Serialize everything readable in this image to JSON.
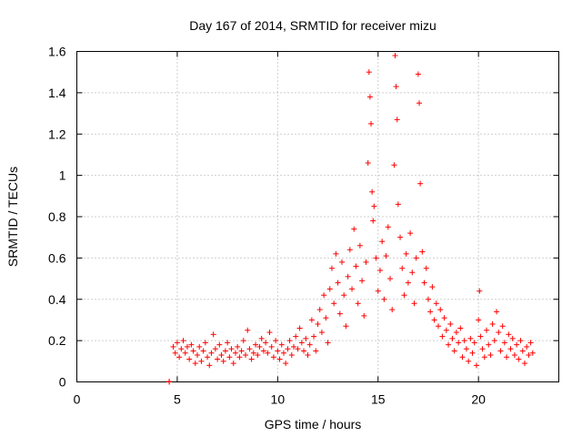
{
  "chart_data": {
    "type": "scatter",
    "title": "Day 167 of 2014, SRMTID for receiver mizu",
    "xlabel": "GPS time / hours",
    "ylabel": "SRMTID / TECUs",
    "xlim": [
      0,
      24
    ],
    "ylim": [
      0,
      1.6
    ],
    "xticks": [
      "0",
      "5",
      "10",
      "15",
      "20"
    ],
    "yticks": [
      "0",
      "0.2",
      "0.4",
      "0.6",
      "0.8",
      "1",
      "1.2",
      "1.4",
      "1.6"
    ],
    "grid": true,
    "marker": "+",
    "color": "#ff0000",
    "series": [
      {
        "name": "SRMTID",
        "points": [
          [
            4.6,
            0.0
          ],
          [
            4.6,
            0.002
          ],
          [
            4.8,
            0.17
          ],
          [
            4.9,
            0.14
          ],
          [
            5.0,
            0.19
          ],
          [
            5.1,
            0.12
          ],
          [
            5.2,
            0.16
          ],
          [
            5.3,
            0.2
          ],
          [
            5.4,
            0.14
          ],
          [
            5.5,
            0.17
          ],
          [
            5.6,
            0.11
          ],
          [
            5.7,
            0.18
          ],
          [
            5.8,
            0.15
          ],
          [
            5.9,
            0.09
          ],
          [
            6.0,
            0.13
          ],
          [
            6.1,
            0.17
          ],
          [
            6.2,
            0.1
          ],
          [
            6.3,
            0.15
          ],
          [
            6.4,
            0.19
          ],
          [
            6.5,
            0.12
          ],
          [
            6.6,
            0.08
          ],
          [
            6.7,
            0.14
          ],
          [
            6.8,
            0.23
          ],
          [
            6.9,
            0.16
          ],
          [
            7.0,
            0.11
          ],
          [
            7.1,
            0.18
          ],
          [
            7.2,
            0.13
          ],
          [
            7.3,
            0.1
          ],
          [
            7.4,
            0.15
          ],
          [
            7.5,
            0.19
          ],
          [
            7.6,
            0.12
          ],
          [
            7.7,
            0.16
          ],
          [
            7.8,
            0.09
          ],
          [
            7.9,
            0.14
          ],
          [
            8.0,
            0.17
          ],
          [
            8.1,
            0.12
          ],
          [
            8.2,
            0.15
          ],
          [
            8.3,
            0.2
          ],
          [
            8.4,
            0.13
          ],
          [
            8.5,
            0.25
          ],
          [
            8.6,
            0.16
          ],
          [
            8.7,
            0.11
          ],
          [
            8.8,
            0.14
          ],
          [
            8.9,
            0.18
          ],
          [
            9.0,
            0.13
          ],
          [
            9.1,
            0.17
          ],
          [
            9.2,
            0.21
          ],
          [
            9.3,
            0.15
          ],
          [
            9.4,
            0.19
          ],
          [
            9.5,
            0.14
          ],
          [
            9.6,
            0.24
          ],
          [
            9.7,
            0.17
          ],
          [
            9.8,
            0.12
          ],
          [
            9.9,
            0.2
          ],
          [
            10.0,
            0.15
          ],
          [
            10.1,
            0.11
          ],
          [
            10.2,
            0.18
          ],
          [
            10.3,
            0.14
          ],
          [
            10.4,
            0.09
          ],
          [
            10.5,
            0.16
          ],
          [
            10.6,
            0.2
          ],
          [
            10.7,
            0.13
          ],
          [
            10.8,
            0.17
          ],
          [
            10.9,
            0.22
          ],
          [
            11.0,
            0.16
          ],
          [
            11.1,
            0.26
          ],
          [
            11.2,
            0.19
          ],
          [
            11.3,
            0.15
          ],
          [
            11.4,
            0.21
          ],
          [
            11.5,
            0.13
          ],
          [
            11.6,
            0.18
          ],
          [
            11.7,
            0.3
          ],
          [
            11.8,
            0.22
          ],
          [
            11.9,
            0.15
          ],
          [
            12.0,
            0.28
          ],
          [
            12.1,
            0.35
          ],
          [
            12.2,
            0.24
          ],
          [
            12.3,
            0.42
          ],
          [
            12.4,
            0.31
          ],
          [
            12.5,
            0.19
          ],
          [
            12.6,
            0.45
          ],
          [
            12.7,
            0.55
          ],
          [
            12.8,
            0.38
          ],
          [
            12.9,
            0.62
          ],
          [
            13.0,
            0.48
          ],
          [
            13.1,
            0.33
          ],
          [
            13.2,
            0.58
          ],
          [
            13.3,
            0.42
          ],
          [
            13.4,
            0.27
          ],
          [
            13.5,
            0.51
          ],
          [
            13.6,
            0.64
          ],
          [
            13.7,
            0.45
          ],
          [
            13.8,
            0.74
          ],
          [
            13.9,
            0.56
          ],
          [
            14.0,
            0.38
          ],
          [
            14.1,
            0.66
          ],
          [
            14.2,
            0.49
          ],
          [
            14.3,
            0.32
          ],
          [
            14.4,
            0.58
          ],
          [
            14.5,
            1.06
          ],
          [
            14.55,
            1.5
          ],
          [
            14.6,
            1.38
          ],
          [
            14.65,
            1.25
          ],
          [
            14.7,
            0.92
          ],
          [
            14.75,
            0.78
          ],
          [
            14.8,
            0.85
          ],
          [
            14.9,
            0.6
          ],
          [
            15.0,
            0.44
          ],
          [
            15.1,
            0.54
          ],
          [
            15.2,
            0.68
          ],
          [
            15.3,
            0.4
          ],
          [
            15.4,
            0.61
          ],
          [
            15.5,
            0.75
          ],
          [
            15.6,
            0.5
          ],
          [
            15.7,
            0.35
          ],
          [
            15.8,
            1.05
          ],
          [
            15.85,
            1.58
          ],
          [
            15.9,
            1.43
          ],
          [
            15.95,
            1.27
          ],
          [
            16.0,
            0.86
          ],
          [
            16.1,
            0.7
          ],
          [
            16.2,
            0.55
          ],
          [
            16.3,
            0.42
          ],
          [
            16.4,
            0.62
          ],
          [
            16.5,
            0.48
          ],
          [
            16.6,
            0.72
          ],
          [
            16.7,
            0.53
          ],
          [
            16.8,
            0.38
          ],
          [
            16.9,
            0.6
          ],
          [
            17.0,
            1.49
          ],
          [
            17.05,
            1.35
          ],
          [
            17.1,
            0.96
          ],
          [
            17.2,
            0.63
          ],
          [
            17.3,
            0.48
          ],
          [
            17.4,
            0.55
          ],
          [
            17.5,
            0.4
          ],
          [
            17.6,
            0.34
          ],
          [
            17.7,
            0.46
          ],
          [
            17.8,
            0.3
          ],
          [
            17.9,
            0.38
          ],
          [
            18.0,
            0.27
          ],
          [
            18.1,
            0.35
          ],
          [
            18.2,
            0.22
          ],
          [
            18.3,
            0.31
          ],
          [
            18.4,
            0.25
          ],
          [
            18.5,
            0.18
          ],
          [
            18.6,
            0.28
          ],
          [
            18.7,
            0.21
          ],
          [
            18.8,
            0.15
          ],
          [
            18.9,
            0.24
          ],
          [
            19.0,
            0.19
          ],
          [
            19.1,
            0.26
          ],
          [
            19.2,
            0.12
          ],
          [
            19.3,
            0.2
          ],
          [
            19.4,
            0.16
          ],
          [
            19.5,
            0.1
          ],
          [
            19.6,
            0.21
          ],
          [
            19.7,
            0.14
          ],
          [
            19.8,
            0.19
          ],
          [
            19.9,
            0.08
          ],
          [
            20.0,
            0.3
          ],
          [
            20.05,
            0.44
          ],
          [
            20.1,
            0.22
          ],
          [
            20.2,
            0.16
          ],
          [
            20.3,
            0.12
          ],
          [
            20.4,
            0.25
          ],
          [
            20.5,
            0.18
          ],
          [
            20.6,
            0.13
          ],
          [
            20.7,
            0.28
          ],
          [
            20.8,
            0.2
          ],
          [
            20.9,
            0.34
          ],
          [
            21.0,
            0.24
          ],
          [
            21.1,
            0.15
          ],
          [
            21.2,
            0.27
          ],
          [
            21.3,
            0.19
          ],
          [
            21.4,
            0.12
          ],
          [
            21.5,
            0.23
          ],
          [
            21.6,
            0.16
          ],
          [
            21.7,
            0.21
          ],
          [
            21.8,
            0.13
          ],
          [
            21.9,
            0.18
          ],
          [
            22.0,
            0.11
          ],
          [
            22.1,
            0.2
          ],
          [
            22.2,
            0.15
          ],
          [
            22.3,
            0.09
          ],
          [
            22.4,
            0.17
          ],
          [
            22.5,
            0.13
          ],
          [
            22.6,
            0.19
          ],
          [
            22.7,
            0.14
          ]
        ]
      }
    ]
  }
}
